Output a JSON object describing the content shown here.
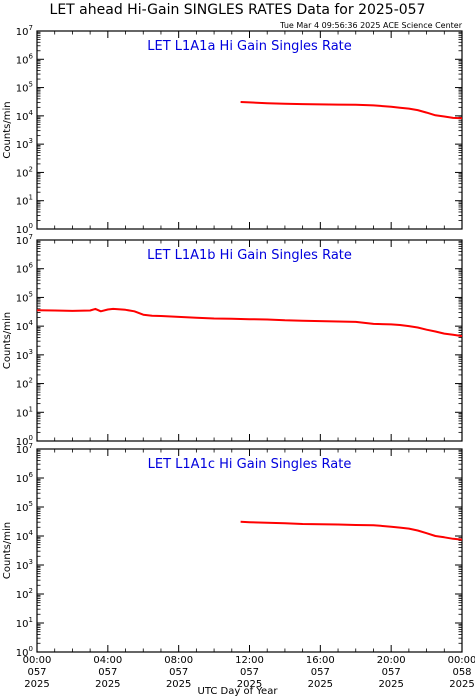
{
  "page": {
    "title": "LET ahead Hi-Gain SINGLES RATES Data for 2025-057",
    "timestamp": "Tue Mar  4 09:56:36 2025 ACE Science Center",
    "xlabel": "UTC Day of Year"
  },
  "chart_data": [
    {
      "type": "line",
      "title": "LET L1A1a Hi Gain Singles Rate",
      "ylabel": "Counts/min",
      "yscale": "log",
      "ylim": [
        1,
        10000000
      ],
      "xlim": [
        0,
        24
      ],
      "color": "#ff0000",
      "series": [
        {
          "x": [
            11.5,
            12.0,
            13.0,
            14.0,
            15.0,
            16.0,
            17.0,
            18.0,
            19.0,
            20.0,
            20.5,
            21.0,
            21.5,
            22.0,
            22.5,
            23.0,
            23.5,
            24.0
          ],
          "y": [
            31000,
            30000,
            28000,
            27000,
            26000,
            25500,
            25000,
            24500,
            23500,
            21000,
            19500,
            18000,
            16000,
            13000,
            10500,
            9500,
            8500,
            8200
          ]
        }
      ]
    },
    {
      "type": "line",
      "title": "LET L1A1b Hi Gain Singles Rate",
      "ylabel": "Counts/min",
      "yscale": "log",
      "ylim": [
        1,
        10000000
      ],
      "xlim": [
        0,
        24
      ],
      "color": "#ff0000",
      "series": [
        {
          "x": [
            0,
            1,
            2,
            3,
            3.3,
            3.6,
            4.0,
            4.3,
            4.6,
            5.0,
            5.5,
            6.0,
            6.5,
            7.0,
            8.0,
            9.0,
            10.0,
            11.0,
            12.0,
            13.0,
            14.0,
            15.0,
            16.0,
            17.0,
            18.0,
            18.5,
            19.0,
            20.0,
            20.5,
            21.0,
            21.5,
            22.0,
            22.5,
            23.0,
            23.5,
            24.0
          ],
          "y": [
            36000,
            35000,
            34000,
            35000,
            40000,
            33000,
            38000,
            40000,
            39000,
            37000,
            33000,
            25000,
            23000,
            22500,
            21000,
            19500,
            18500,
            18000,
            17500,
            17000,
            16000,
            15500,
            15000,
            14500,
            14000,
            13000,
            12000,
            11500,
            11000,
            10000,
            9000,
            7500,
            6500,
            5500,
            5000,
            4500
          ]
        }
      ]
    },
    {
      "type": "line",
      "title": "LET L1A1c Hi Gain Singles Rate",
      "ylabel": "Counts/min",
      "yscale": "log",
      "ylim": [
        1,
        10000000
      ],
      "xlim": [
        0,
        24
      ],
      "color": "#ff0000",
      "series": [
        {
          "x": [
            11.5,
            12.0,
            13.0,
            14.0,
            15.0,
            16.0,
            17.0,
            18.0,
            19.0,
            20.0,
            20.5,
            21.0,
            21.5,
            22.0,
            22.5,
            23.0,
            23.5,
            24.0
          ],
          "y": [
            31000,
            30000,
            28500,
            27500,
            26000,
            25500,
            25000,
            24000,
            23500,
            21000,
            19500,
            18000,
            15500,
            12500,
            10000,
            9000,
            8000,
            7500
          ]
        }
      ]
    }
  ],
  "xaxis": {
    "tick_hours": [
      0,
      4,
      8,
      12,
      16,
      20,
      24
    ],
    "tick_labels": [
      [
        "00:00",
        "057",
        "2025"
      ],
      [
        "04:00",
        "057",
        "2025"
      ],
      [
        "08:00",
        "057",
        "2025"
      ],
      [
        "12:00",
        "057",
        "2025"
      ],
      [
        "16:00",
        "057",
        "2025"
      ],
      [
        "20:00",
        "057",
        "2025"
      ],
      [
        "00:00",
        "058",
        "2025"
      ]
    ]
  },
  "yaxis": {
    "tick_exponents": [
      0,
      1,
      2,
      3,
      4,
      5,
      6,
      7
    ],
    "tick_base": "10"
  }
}
